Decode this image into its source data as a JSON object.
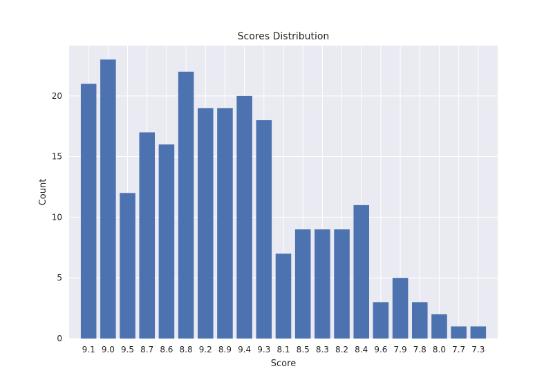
{
  "chart_data": {
    "type": "bar",
    "title": "Scores Distribution",
    "xlabel": "Score",
    "ylabel": "Count",
    "categories": [
      "9.1",
      "9.0",
      "9.5",
      "8.7",
      "8.6",
      "8.8",
      "9.2",
      "8.9",
      "9.4",
      "9.3",
      "8.1",
      "8.5",
      "8.3",
      "8.2",
      "8.4",
      "9.6",
      "7.9",
      "7.8",
      "8.0",
      "7.7",
      "7.3"
    ],
    "values": [
      21,
      23,
      12,
      17,
      16,
      22,
      19,
      19,
      20,
      18,
      7,
      9,
      9,
      9,
      11,
      3,
      5,
      3,
      2,
      1,
      1
    ],
    "ylim": [
      0,
      24.15
    ],
    "yticks": [
      0,
      5,
      10,
      15,
      20
    ],
    "grid": true,
    "colors": {
      "bar": "#4c72b0",
      "plot_background": "#eaeaf2",
      "grid": "#ffffff",
      "text": "#262626"
    }
  }
}
